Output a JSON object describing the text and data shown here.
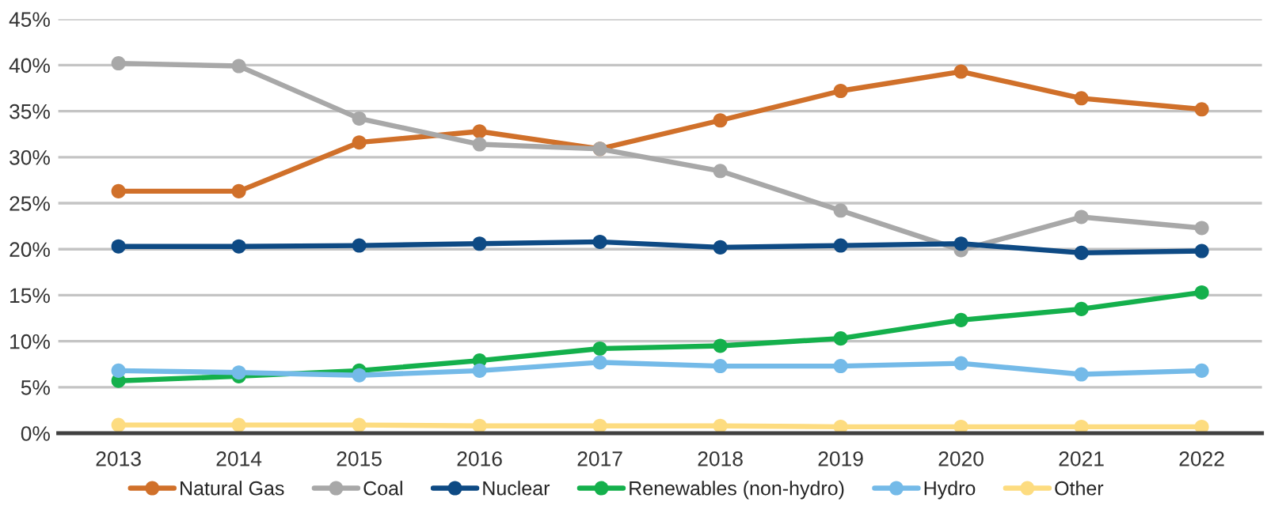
{
  "chart_data": {
    "type": "line",
    "categories": [
      "2013",
      "2014",
      "2015",
      "2016",
      "2017",
      "2018",
      "2019",
      "2020",
      "2021",
      "2022"
    ],
    "ylim": [
      0,
      45
    ],
    "yticks": [
      {
        "value": 0,
        "label": "0%"
      },
      {
        "value": 5,
        "label": "5%"
      },
      {
        "value": 10,
        "label": "10%"
      },
      {
        "value": 15,
        "label": "15%"
      },
      {
        "value": 20,
        "label": "20%"
      },
      {
        "value": 25,
        "label": "25%"
      },
      {
        "value": 30,
        "label": "30%"
      },
      {
        "value": 35,
        "label": "35%"
      },
      {
        "value": 40,
        "label": "40%"
      },
      {
        "value": 45,
        "label": "45%"
      }
    ],
    "grid": "y",
    "legend": "bottom",
    "marker": "circle",
    "line_style": "solid",
    "series": [
      {
        "name": "Natural Gas",
        "color": "#d0702a",
        "values": [
          26.3,
          26.3,
          31.6,
          32.8,
          30.9,
          34.0,
          37.2,
          39.3,
          36.4,
          35.2
        ]
      },
      {
        "name": "Coal",
        "color": "#a8a8a8",
        "values": [
          40.2,
          39.9,
          34.2,
          31.4,
          30.9,
          28.5,
          24.2,
          19.9,
          23.5,
          22.3
        ]
      },
      {
        "name": "Nuclear",
        "color": "#0e4a84",
        "values": [
          20.3,
          20.3,
          20.4,
          20.6,
          20.8,
          20.2,
          20.4,
          20.6,
          19.6,
          19.8
        ]
      },
      {
        "name": "Renewables (non-hydro)",
        "color": "#14b04c",
        "values": [
          5.7,
          6.2,
          6.8,
          7.9,
          9.2,
          9.5,
          10.3,
          12.3,
          13.5,
          15.3
        ]
      },
      {
        "name": "Hydro",
        "color": "#74bae8",
        "values": [
          6.8,
          6.6,
          6.3,
          6.8,
          7.7,
          7.3,
          7.3,
          7.6,
          6.4,
          6.8
        ]
      },
      {
        "name": "Other",
        "color": "#fddc80",
        "values": [
          0.9,
          0.9,
          0.9,
          0.8,
          0.8,
          0.8,
          0.7,
          0.7,
          0.7,
          0.7
        ]
      }
    ]
  }
}
